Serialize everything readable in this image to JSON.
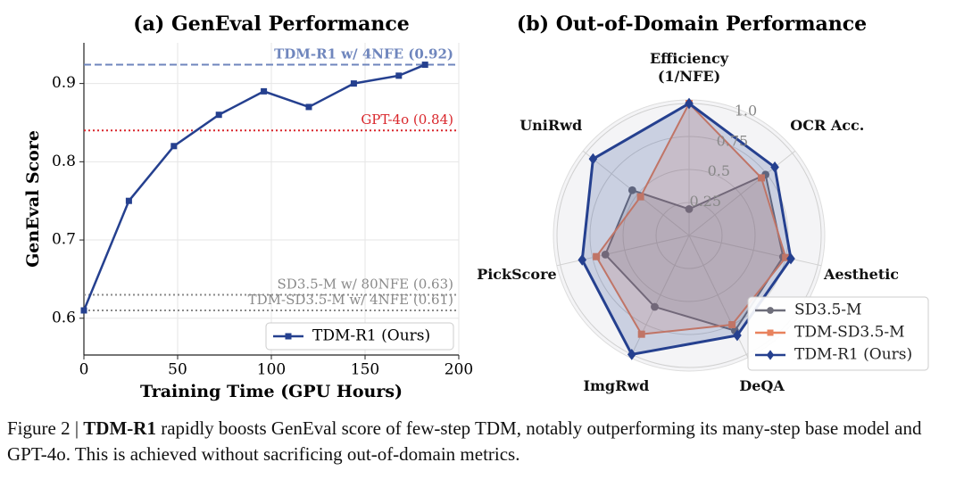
{
  "chart_data": [
    {
      "type": "line",
      "title": "(a) GenEval Performance",
      "x_label": "Training Time (GPU Hours)",
      "y_label": "GenEval Score",
      "x": [
        0,
        24,
        48,
        72,
        96,
        120,
        144,
        168,
        182
      ],
      "series": [
        {
          "name": "TDM-R1 (Ours)",
          "color": "#25408f",
          "values": [
            0.61,
            0.75,
            0.82,
            0.86,
            0.89,
            0.87,
            0.9,
            0.91,
            0.924
          ]
        }
      ],
      "reference_lines": [
        {
          "label": "TDM-R1 w/ 4NFE (0.92)",
          "value": 0.924,
          "color": "#6f86bd",
          "style": "dashed"
        },
        {
          "label": "GPT-4o (0.84)",
          "value": 0.84,
          "color": "#d9262b",
          "style": "dotted"
        },
        {
          "label": "SD3.5-M w/ 80NFE (0.63)",
          "value": 0.63,
          "color": "#8a8a8a",
          "style": "dotted"
        },
        {
          "label": "TDM-SD3.5-M w/ 4NFE (0.61)",
          "value": 0.61,
          "color": "#8a8a8a",
          "style": "dotted"
        }
      ],
      "xlim": [
        0,
        200
      ],
      "xticks": [
        0,
        50,
        100,
        150,
        200
      ],
      "ylim": [
        0.553,
        0.952
      ],
      "yticks": [
        0.6,
        0.7,
        0.8,
        0.9
      ],
      "grid": true,
      "legend": "lower right"
    },
    {
      "type": "radar",
      "title": "(b) Out-of-Domain Performance",
      "categories": [
        "Efficiency (1/NFE)",
        "OCR Acc.",
        "Aesthetic",
        "DeQA",
        "ImgRwd",
        "PickScore",
        "UniRwd"
      ],
      "series": [
        {
          "name": "SD3.5-M",
          "color": "#6e6e7a",
          "marker": "circle",
          "values": [
            0.2,
            0.74,
            0.73,
            0.8,
            0.6,
            0.65,
            0.55
          ]
        },
        {
          "name": "TDM-SD3.5-M",
          "color": "#e8825d",
          "marker": "square",
          "values": [
            1.0,
            0.7,
            0.75,
            0.75,
            0.83,
            0.72,
            0.47
          ]
        },
        {
          "name": "TDM-R1 (Ours)",
          "color": "#25408f",
          "marker": "diamond",
          "values": [
            1.0,
            0.83,
            0.79,
            0.84,
            1.0,
            0.83,
            0.93
          ]
        }
      ],
      "rlim": [
        0,
        1
      ],
      "rticks": [
        0.25,
        0.5,
        0.75,
        {
          "value": 1,
          "label": "1.0"
        }
      ],
      "legend": "lower right"
    }
  ],
  "caption": {
    "label": "Figure 2 |",
    "bold": "TDM-R1",
    "text": "rapidly boosts GenEval score of few-step TDM, notably outperforming its many-step base model and GPT-4o. This is achieved without sacrificing out-of-domain metrics."
  }
}
